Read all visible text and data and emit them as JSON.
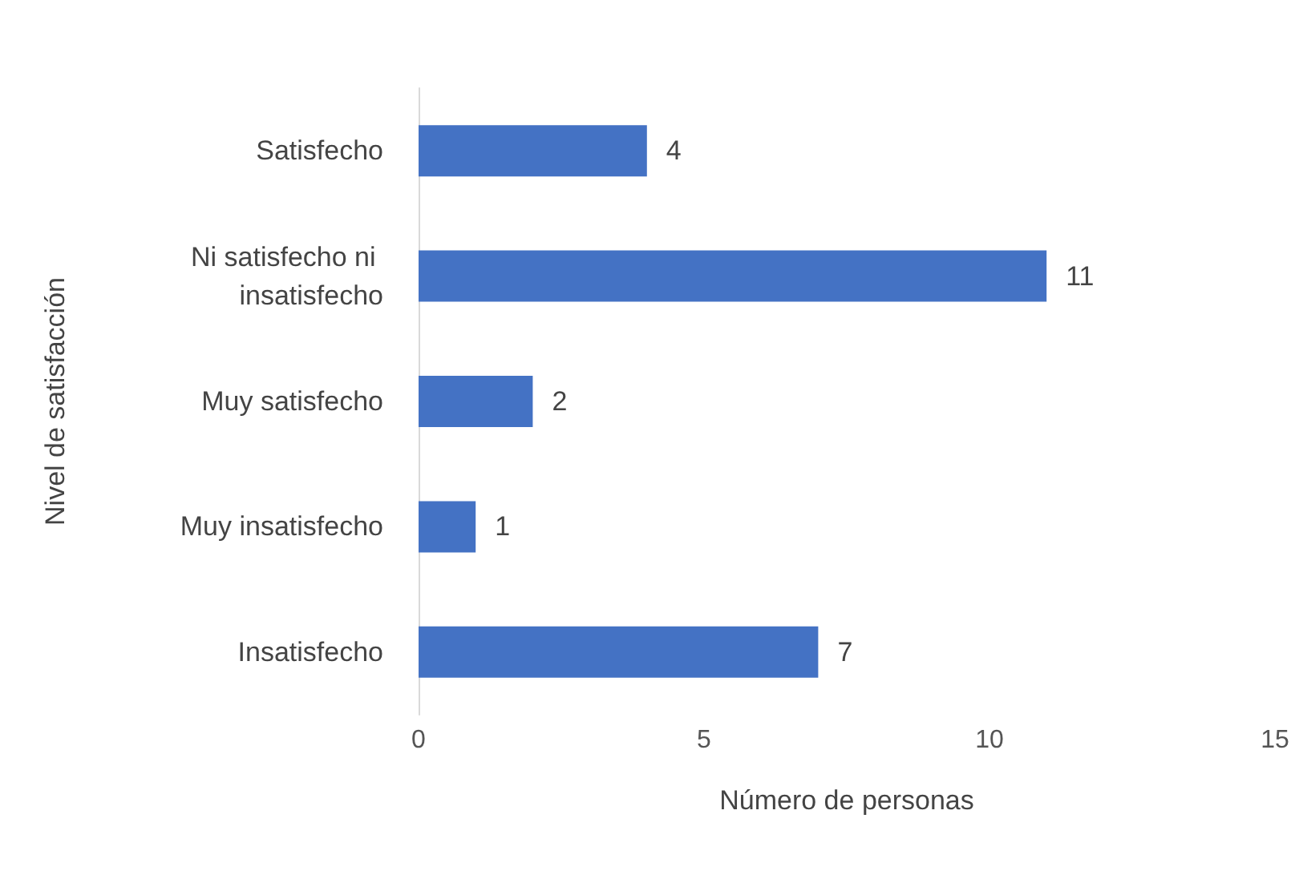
{
  "chart_data": {
    "type": "bar",
    "orientation": "horizontal",
    "xlabel": "Número de personas",
    "ylabel": "Nivel de satisfacción",
    "categories": [
      "Satisfecho",
      "Ni satisfecho ni insatisfecho",
      "Muy satisfecho",
      "Muy insatisfecho",
      "Insatisfecho"
    ],
    "values": [
      4,
      11,
      2,
      1,
      7
    ],
    "color": "#4472c4",
    "xlim": [
      0,
      15
    ],
    "xticks": [
      0,
      5,
      10,
      15
    ],
    "grid": false,
    "data_labels": true
  }
}
